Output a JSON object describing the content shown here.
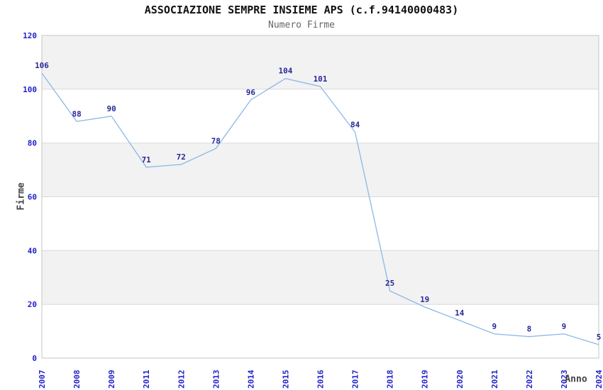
{
  "chart_data": {
    "type": "line",
    "title": "ASSOCIAZIONE SEMPRE INSIEME APS (c.f.94140000483)",
    "subtitle": "Numero Firme",
    "xlabel": "Anno",
    "ylabel": "Firme",
    "categories": [
      "2007",
      "2008",
      "2009",
      "2011",
      "2012",
      "2013",
      "2014",
      "2015",
      "2016",
      "2017",
      "2018",
      "2019",
      "2020",
      "2021",
      "2022",
      "2023",
      "2024"
    ],
    "values": [
      106,
      88,
      90,
      71,
      72,
      78,
      96,
      104,
      101,
      84,
      25,
      19,
      14,
      9,
      8,
      9,
      5
    ],
    "ylim": [
      0,
      120
    ],
    "ytick_step": 20,
    "grid": "horizontal-bands",
    "legend": "none",
    "colors": {
      "line": "#8cb8e8",
      "tick_label": "#2222cc",
      "point_label": "#28289b",
      "band": "#f2f2f2",
      "gridline": "#d9d9d9",
      "border": "#c6c6c6",
      "title": "#111111",
      "subtitle": "#666666",
      "axis_label": "#444444"
    }
  }
}
